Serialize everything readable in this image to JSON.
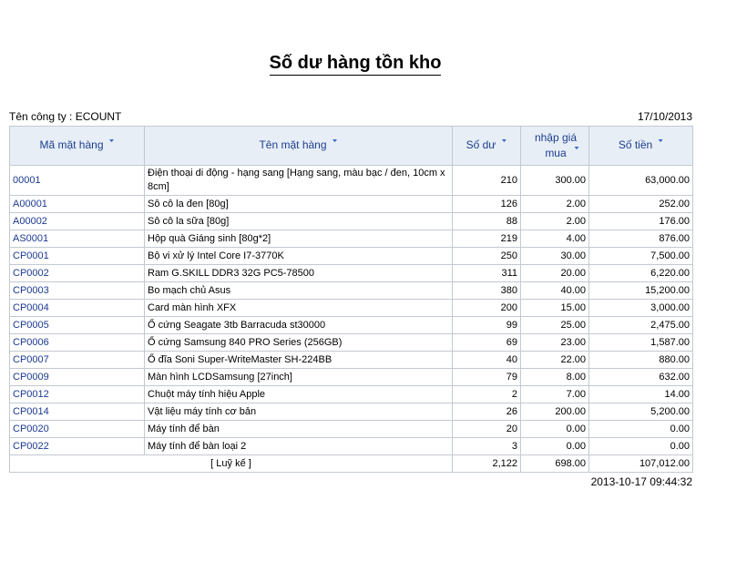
{
  "title": "Số dư hàng tồn kho",
  "company_label": "Tên công ty : ECOUNT",
  "report_date": "17/10/2013",
  "columns": {
    "code": "Mã mặt hàng",
    "name": "Tên mặt hàng",
    "balance": "Số dư",
    "price": "nhập giá mua",
    "amount": "Số tiền",
    "sort_icon": "sort-down-icon"
  },
  "rows": [
    {
      "code": "00001",
      "name": "Điện thoại di động - hạng sang [Hạng sang, màu bạc  / đen, 10cm x 8cm]",
      "balance": "210",
      "price": "300.00",
      "amount": "63,000.00"
    },
    {
      "code": "A00001",
      "name": "Sô cô la đen [80g]",
      "balance": "126",
      "price": "2.00",
      "amount": "252.00"
    },
    {
      "code": "A00002",
      "name": "Sô cô la sữa [80g]",
      "balance": "88",
      "price": "2.00",
      "amount": "176.00"
    },
    {
      "code": "AS0001",
      "name": "Hộp quà Giáng sinh [80g*2]",
      "balance": "219",
      "price": "4.00",
      "amount": "876.00"
    },
    {
      "code": "CP0001",
      "name": "Bộ vi xử lý Intel Core I7-3770K",
      "balance": "250",
      "price": "30.00",
      "amount": "7,500.00"
    },
    {
      "code": "CP0002",
      "name": "Ram G.SKILL DDR3 32G PC5-78500",
      "balance": "311",
      "price": "20.00",
      "amount": "6,220.00"
    },
    {
      "code": "CP0003",
      "name": "Bo mạch chủ Asus",
      "balance": "380",
      "price": "40.00",
      "amount": "15,200.00"
    },
    {
      "code": "CP0004",
      "name": "Card màn hình XFX",
      "balance": "200",
      "price": "15.00",
      "amount": "3,000.00"
    },
    {
      "code": "CP0005",
      "name": "Ổ cứng Seagate 3tb Barracuda st30000",
      "balance": "99",
      "price": "25.00",
      "amount": "2,475.00"
    },
    {
      "code": "CP0006",
      "name": "Ổ cứng Samsung 840 PRO Series (256GB)",
      "balance": "69",
      "price": "23.00",
      "amount": "1,587.00"
    },
    {
      "code": "CP0007",
      "name": "Ổ đĩa Soni Super-WriteMaster SH-224BB",
      "balance": "40",
      "price": "22.00",
      "amount": "880.00"
    },
    {
      "code": "CP0009",
      "name": "Màn hình LCDSamsung [27inch]",
      "balance": "79",
      "price": "8.00",
      "amount": "632.00"
    },
    {
      "code": "CP0012",
      "name": "Chuột máy tính hiệu Apple",
      "balance": "2",
      "price": "7.00",
      "amount": "14.00"
    },
    {
      "code": "CP0014",
      "name": "Vật liệu máy tính cơ bản",
      "balance": "26",
      "price": "200.00",
      "amount": "5,200.00"
    },
    {
      "code": "CP0020",
      "name": "Máy tính để bàn",
      "balance": "20",
      "price": "0.00",
      "amount": "0.00"
    },
    {
      "code": "CP0022",
      "name": "Máy tính để bàn loại 2",
      "balance": "3",
      "price": "0.00",
      "amount": "0.00"
    }
  ],
  "total": {
    "label": "[ Luỹ kế ]",
    "balance": "2,122",
    "price": "698.00",
    "amount": "107,012.00"
  },
  "timestamp": "2013-10-17 09:44:32"
}
